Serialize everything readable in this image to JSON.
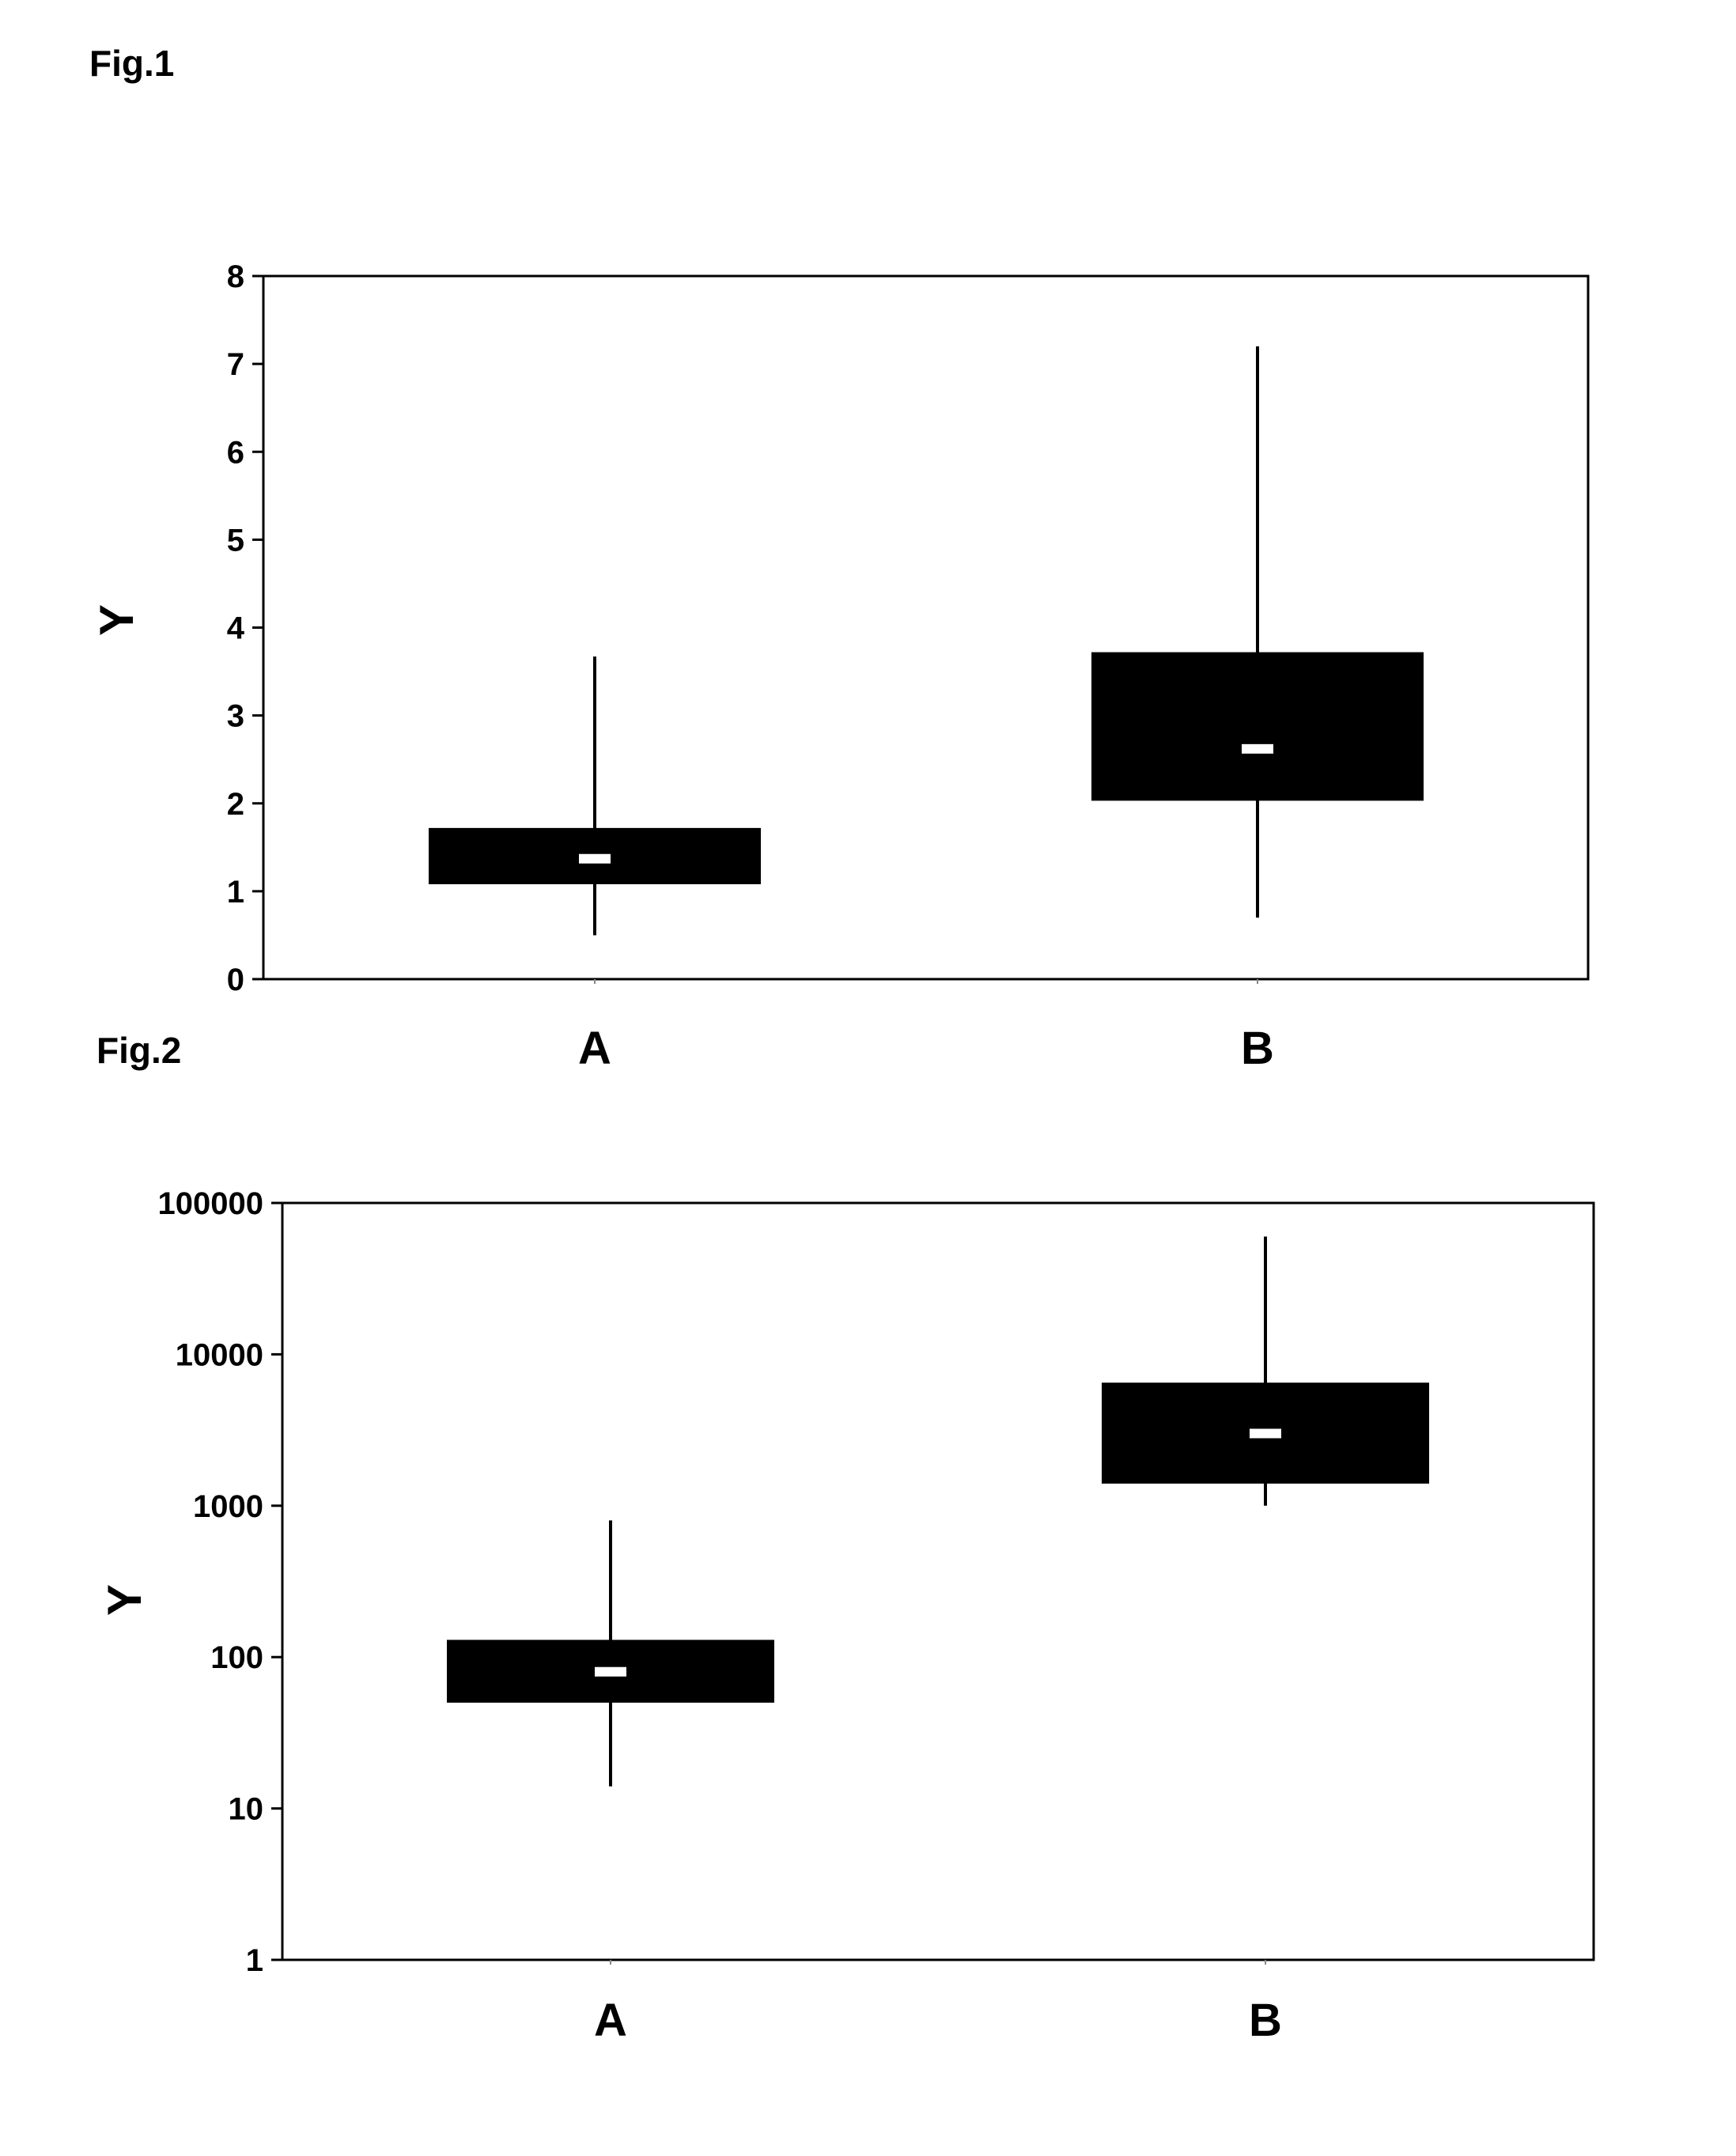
{
  "figures": [
    {
      "label": "Fig.1"
    },
    {
      "label": "Fig.2"
    }
  ],
  "chart_data": [
    {
      "type": "boxplot",
      "ylabel": "Y",
      "yscale": "linear",
      "ylim": [
        0,
        8
      ],
      "yticks": [
        "0",
        "1",
        "2",
        "3",
        "4",
        "5",
        "6",
        "7",
        "8"
      ],
      "ytick_values": [
        0,
        1,
        2,
        3,
        4,
        5,
        6,
        7,
        8
      ],
      "categories": [
        "A",
        "B"
      ],
      "boxes": [
        {
          "category": "A",
          "whisker_low": 0.5,
          "q1": 1.08,
          "median": 1.37,
          "q3": 1.72,
          "whisker_high": 3.67
        },
        {
          "category": "B",
          "whisker_low": 0.7,
          "q1": 2.03,
          "median": 2.62,
          "q3": 3.72,
          "whisker_high": 7.2
        }
      ],
      "box_color": "#000000",
      "median_color": "#ffffff",
      "grid": false
    },
    {
      "type": "boxplot",
      "ylabel": "Y",
      "yscale": "log",
      "ylim": [
        1,
        100000
      ],
      "yticks": [
        "1",
        "10",
        "100",
        "1000",
        "10000",
        "100000"
      ],
      "ytick_values": [
        1,
        10,
        100,
        1000,
        10000,
        100000
      ],
      "categories": [
        "A",
        "B"
      ],
      "boxes": [
        {
          "category": "A",
          "whisker_low": 14,
          "q1": 50,
          "median": 80,
          "q3": 130,
          "whisker_high": 800
        },
        {
          "category": "B",
          "whisker_low": 1000,
          "q1": 1400,
          "median": 3000,
          "q3": 6500,
          "whisker_high": 60000
        }
      ],
      "box_color": "#000000",
      "median_color": "#ffffff",
      "grid": false
    }
  ]
}
